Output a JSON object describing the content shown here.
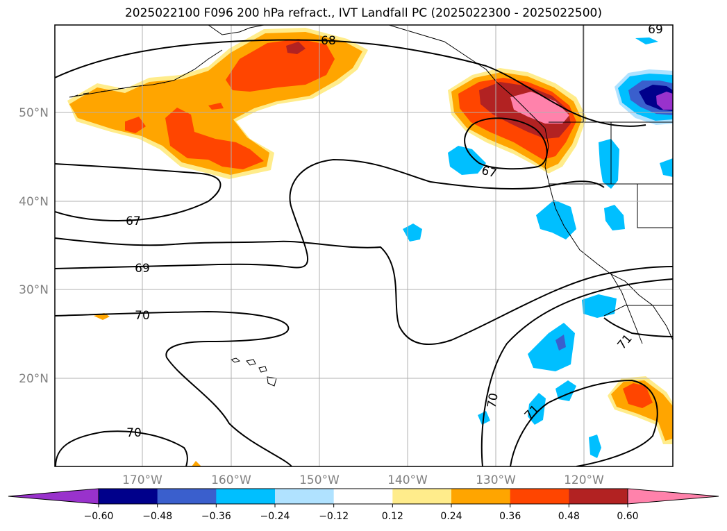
{
  "title": "2025022100 F096 200 hPa refract., IVT Landfall PC (2025022300 - 2025022500)",
  "map": {
    "lat_labels": [
      "50°N",
      "40°N",
      "30°N",
      "20°N"
    ],
    "lon_labels": [
      "170°W",
      "160°W",
      "150°W",
      "140°W",
      "130°W",
      "120°W"
    ],
    "contour_labels": [
      "68",
      "67",
      "67",
      "69",
      "70",
      "70",
      "70",
      "71",
      "71",
      "69"
    ]
  },
  "colorbar": {
    "ticks": [
      "−0.60",
      "−0.48",
      "−0.36",
      "−0.24",
      "−0.12",
      "0.12",
      "0.24",
      "0.36",
      "0.48",
      "0.60"
    ],
    "colors": [
      "#9932cc",
      "#00008b",
      "#3a5fcd",
      "#00bfff",
      "#b0e2ff",
      "#ffffff",
      "#ffec8b",
      "#ffa500",
      "#ff4500",
      "#b22222",
      "#ff82ab"
    ]
  },
  "colors": {
    "pos_light": "#ffec8b",
    "pos_orange": "#ffa500",
    "pos_redorange": "#ff4500",
    "pos_firebrick": "#b22222",
    "pos_pink": "#ff82ab",
    "neg_light": "#b0e2ff",
    "neg_sky": "#00bfff",
    "neg_royal": "#3a5fcd",
    "neg_navy": "#00008b",
    "neg_purple": "#9932cc"
  }
}
